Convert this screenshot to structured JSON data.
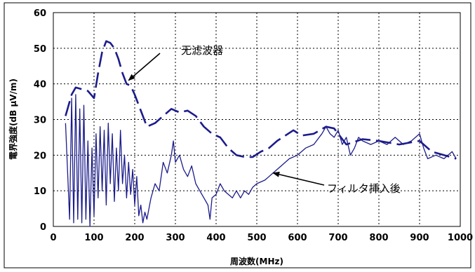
{
  "chart_data": {
    "type": "line",
    "xlabel": "周波数(MHz)",
    "ylabel": "電界強度(dB μV/m)",
    "xlim": [
      0,
      1000
    ],
    "ylim": [
      0,
      60
    ],
    "x_ticks": [
      "0",
      "100",
      "200",
      "300",
      "400",
      "500",
      "600",
      "700",
      "800",
      "900",
      "1000"
    ],
    "y_ticks": [
      "0",
      "10",
      "20",
      "30",
      "40",
      "50",
      "60"
    ],
    "grid": true,
    "legend": "none",
    "colors": {
      "series": "#1c1c8c",
      "grid": "#000000"
    },
    "annotations": [
      {
        "text": "无滤波器",
        "series": "without_filter",
        "points_to": [
          185,
          41
        ]
      },
      {
        "text": "フィルタ挿入後",
        "series": "with_filter",
        "points_to": [
          540,
          15
        ]
      }
    ],
    "series": [
      {
        "key": "without_filter",
        "style": "dashed",
        "x": [
          30,
          35,
          45,
          55,
          70,
          85,
          100,
          110,
          120,
          130,
          140,
          150,
          160,
          170,
          180,
          190,
          200,
          210,
          220,
          230,
          250,
          270,
          290,
          310,
          330,
          350,
          370,
          390,
          410,
          430,
          450,
          470,
          490,
          510,
          530,
          550,
          570,
          590,
          610,
          640,
          670,
          690,
          720,
          760,
          800,
          850,
          900,
          930,
          960,
          990
        ],
        "y": [
          31,
          33,
          37,
          39,
          38.5,
          38,
          36,
          43,
          49,
          52,
          51.5,
          50,
          47,
          43,
          40,
          39.5,
          37,
          34,
          31,
          28,
          29,
          31,
          33,
          32,
          32.5,
          31,
          28,
          26,
          25,
          22,
          20,
          19.5,
          19.5,
          21,
          22,
          24,
          25.5,
          27,
          25.5,
          26,
          28,
          27.5,
          23,
          24.5,
          24,
          23,
          24,
          21,
          20,
          19
        ]
      },
      {
        "key": "with_filter",
        "style": "solid",
        "envelope": [
          [
            30,
            29
          ],
          [
            40,
            2
          ],
          [
            45,
            36
          ],
          [
            50,
            1
          ],
          [
            55,
            37
          ],
          [
            60,
            2
          ],
          [
            65,
            33
          ],
          [
            70,
            1
          ],
          [
            75,
            34
          ],
          [
            80,
            2
          ],
          [
            85,
            24
          ],
          [
            90,
            0
          ],
          [
            95,
            22
          ],
          [
            100,
            3
          ],
          [
            105,
            26
          ],
          [
            110,
            8
          ],
          [
            115,
            28
          ],
          [
            120,
            10
          ],
          [
            125,
            27
          ],
          [
            130,
            6
          ],
          [
            135,
            29
          ],
          [
            140,
            12
          ],
          [
            145,
            26
          ],
          [
            150,
            7
          ],
          [
            155,
            22
          ],
          [
            160,
            10
          ],
          [
            165,
            27
          ],
          [
            170,
            12
          ],
          [
            175,
            20
          ],
          [
            180,
            8
          ],
          [
            185,
            18
          ],
          [
            190,
            9
          ],
          [
            195,
            16
          ],
          [
            200,
            6
          ],
          [
            205,
            14
          ],
          [
            210,
            3
          ],
          [
            215,
            6
          ],
          [
            220,
            1
          ],
          [
            225,
            4
          ],
          [
            230,
            2
          ],
          [
            240,
            8
          ],
          [
            250,
            12
          ],
          [
            260,
            10
          ],
          [
            270,
            18
          ],
          [
            280,
            15
          ],
          [
            290,
            20
          ],
          [
            295,
            24
          ],
          [
            300,
            18
          ],
          [
            310,
            20
          ],
          [
            320,
            16
          ],
          [
            330,
            14
          ],
          [
            340,
            17
          ],
          [
            350,
            12
          ],
          [
            360,
            10
          ],
          [
            370,
            8
          ],
          [
            380,
            6
          ],
          [
            385,
            2
          ],
          [
            390,
            8
          ],
          [
            400,
            9
          ],
          [
            410,
            12
          ],
          [
            420,
            10
          ],
          [
            430,
            9
          ],
          [
            440,
            8
          ],
          [
            450,
            10
          ],
          [
            460,
            8
          ],
          [
            470,
            10
          ],
          [
            480,
            9
          ],
          [
            490,
            11
          ],
          [
            500,
            12
          ],
          [
            520,
            13
          ],
          [
            540,
            15
          ],
          [
            560,
            17
          ],
          [
            580,
            19
          ],
          [
            600,
            20
          ],
          [
            620,
            22
          ],
          [
            640,
            23
          ],
          [
            660,
            26
          ],
          [
            670,
            28
          ],
          [
            680,
            26
          ],
          [
            690,
            25
          ],
          [
            700,
            27
          ],
          [
            710,
            23
          ],
          [
            720,
            25
          ],
          [
            730,
            20
          ],
          [
            740,
            22
          ],
          [
            750,
            25
          ],
          [
            760,
            24
          ],
          [
            780,
            23
          ],
          [
            800,
            24
          ],
          [
            820,
            23
          ],
          [
            840,
            25
          ],
          [
            860,
            23
          ],
          [
            880,
            24
          ],
          [
            900,
            26
          ],
          [
            910,
            22
          ],
          [
            920,
            19
          ],
          [
            940,
            20
          ],
          [
            960,
            19
          ],
          [
            980,
            21
          ],
          [
            990,
            19
          ]
        ]
      }
    ]
  }
}
